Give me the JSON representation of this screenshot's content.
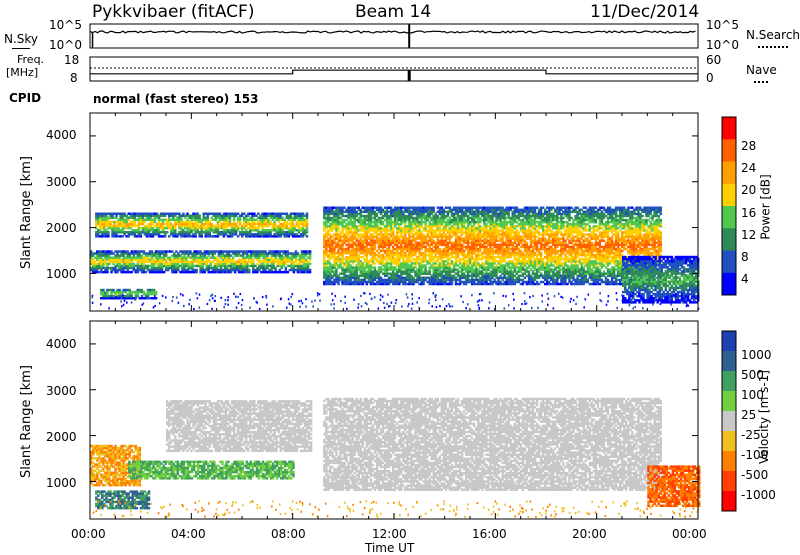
{
  "header": {
    "site": "Pykkvibaer (fitACF)",
    "beam": "Beam 14",
    "date": "11/Dec/2014"
  },
  "noise_panel": {
    "left_label": "N.Sky",
    "right_label": "N.Search",
    "left_ticks": [
      "10^5",
      "10^0"
    ],
    "right_ticks": [
      "10^5",
      "10^0"
    ]
  },
  "freq_panel": {
    "left_label_1": "Freq.",
    "left_label_2": "[MHz]",
    "left_ticks": [
      "18",
      "8"
    ],
    "right_label": "Nave",
    "right_ticks": [
      "60",
      "0"
    ],
    "cpid_label": "CPID",
    "mode": "normal (fast stereo) 153"
  },
  "power_panel": {
    "ylabel": "Slant Range [km]",
    "yticks": [
      "4000",
      "3000",
      "2000",
      "1000"
    ],
    "colorbar_title": "Power [dB]",
    "colorbar_labels": [
      "28",
      "24",
      "20",
      "16",
      "12",
      "8",
      "4"
    ],
    "colors": [
      "#ff0000",
      "#ff6000",
      "#ffa000",
      "#ffd000",
      "#50c850",
      "#2e8b57",
      "#2050c0",
      "#0000ff"
    ]
  },
  "velocity_panel": {
    "ylabel": "Slant Range [km]",
    "yticks": [
      "4000",
      "3000",
      "2000",
      "1000"
    ],
    "colorbar_title": "Velocity [m s-1]",
    "colorbar_labels": [
      "1000",
      "500",
      "100",
      "25",
      "-25",
      "-100",
      "-500",
      "-1000"
    ],
    "colors": [
      "#2040b0",
      "#306090",
      "#40a060",
      "#70d040",
      "#c8c8c8",
      "#f0c020",
      "#ff8000",
      "#ff4000",
      "#ff0000"
    ]
  },
  "xaxis": {
    "label": "Time UT",
    "ticks": [
      "00:00",
      "04:00",
      "08:00",
      "12:00",
      "16:00",
      "20:00",
      "00:00"
    ]
  },
  "chart_data": {
    "type": "heatmap",
    "title": "Pykkvibaer (fitACF)",
    "subtitle": "Beam 14",
    "date": "11/Dec/2014",
    "xlabel": "Time UT",
    "ylabel": "Slant Range [km]",
    "xlim_hours": [
      0,
      24
    ],
    "ylim_km": [
      180,
      4500
    ],
    "grid": false,
    "power_scale_db": [
      0,
      30
    ],
    "velocity_scale_ms": [
      -1000,
      1000
    ],
    "power_bands": [
      {
        "t_start": 0.2,
        "t_end": 8.6,
        "r_center": 2050,
        "r_halfwidth": 260,
        "peak_db": 22
      },
      {
        "t_start": 0.0,
        "t_end": 8.7,
        "r_center": 1250,
        "r_halfwidth": 240,
        "peak_db": 20
      },
      {
        "t_start": 0.4,
        "t_end": 2.6,
        "r_center": 550,
        "r_halfwidth": 110,
        "peak_db": 18
      },
      {
        "t_start": 9.2,
        "t_end": 22.5,
        "r_center": 1600,
        "r_halfwidth": 850,
        "peak_db": 26
      },
      {
        "t_start": 21.0,
        "t_end": 24.0,
        "r_center": 850,
        "r_halfwidth": 500,
        "peak_db": 14
      }
    ],
    "velocity_bands": [
      {
        "t_start": 3.0,
        "t_end": 8.7,
        "r_center": 2200,
        "r_halfwidth": 550,
        "velocity_ms": 0
      },
      {
        "t_start": 0.0,
        "t_end": 2.0,
        "r_center": 1350,
        "r_halfwidth": 450,
        "velocity_ms": -100
      },
      {
        "t_start": 1.5,
        "t_end": 8.0,
        "r_center": 1250,
        "r_halfwidth": 200,
        "velocity_ms": 100
      },
      {
        "t_start": 0.2,
        "t_end": 2.3,
        "r_center": 600,
        "r_halfwidth": 200,
        "velocity_ms": 500
      },
      {
        "t_start": 9.2,
        "t_end": 22.5,
        "r_center": 1800,
        "r_halfwidth": 1000,
        "velocity_ms": 0
      },
      {
        "t_start": 22.0,
        "t_end": 24.0,
        "r_center": 900,
        "r_halfwidth": 450,
        "velocity_ms": -500
      }
    ],
    "frequency_mhz": [
      {
        "t_start": 0,
        "t_end": 8.0,
        "value": 11.0
      },
      {
        "t_start": 8.0,
        "t_end": 18.0,
        "value": 12.5
      },
      {
        "t_start": 18.0,
        "t_end": 24,
        "value": 11.0
      }
    ]
  }
}
